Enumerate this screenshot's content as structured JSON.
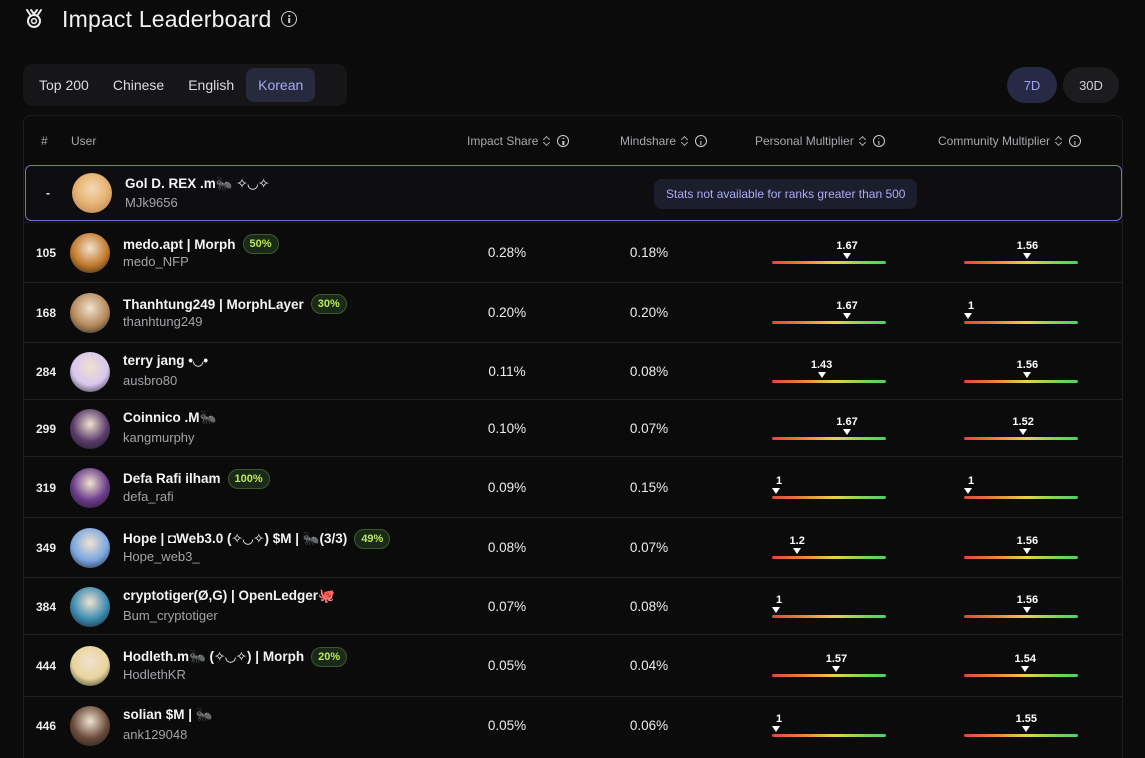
{
  "header": {
    "title": "Impact Leaderboard"
  },
  "tabs": [
    {
      "label": "Top 200",
      "active": false
    },
    {
      "label": "Chinese",
      "active": false
    },
    {
      "label": "English",
      "active": false
    },
    {
      "label": "Korean",
      "active": true
    }
  ],
  "periods": [
    {
      "label": "7D",
      "active": true
    },
    {
      "label": "30D",
      "active": false
    }
  ],
  "columns": {
    "rank": "#",
    "user": "User",
    "impact": "Impact Share",
    "mindshare": "Mindshare",
    "personal": "Personal Multiplier",
    "community": "Community Multiplier"
  },
  "multiplier_scale": {
    "min": 1,
    "max": 2
  },
  "current_user": {
    "rank": "-",
    "name": "Gol D. REX .m🐜 ✧◡✧",
    "handle": "MJk9656",
    "notice": "Stats not available for ranks greater than 500"
  },
  "rows": [
    {
      "rank": "105",
      "name": "medo.apt | Morph",
      "badge": "50%",
      "handle": "medo_NFP",
      "impact": "0.28%",
      "mindshare": "0.18%",
      "personal": 1.67,
      "personal_label": "1.67",
      "community": 1.56,
      "community_label": "1.56",
      "avatar_color": "#c27a2a"
    },
    {
      "rank": "168",
      "name": "Thanhtung249 | MorphLayer",
      "badge": "30%",
      "handle": "thanhtung249",
      "impact": "0.20%",
      "mindshare": "0.20%",
      "personal": 1.67,
      "personal_label": "1.67",
      "community": 1,
      "community_label": "1",
      "avatar_color": "#b58a5a"
    },
    {
      "rank": "284",
      "name": "terry jang •◡•",
      "badge": "",
      "handle": "ausbro80",
      "impact": "0.11%",
      "mindshare": "0.08%",
      "personal": 1.43,
      "personal_label": "1.43",
      "community": 1.56,
      "community_label": "1.56",
      "avatar_color": "#d8c6ee"
    },
    {
      "rank": "299",
      "name": "Coinnico .M🐜",
      "badge": "",
      "handle": "kangmurphy",
      "impact": "0.10%",
      "mindshare": "0.07%",
      "personal": 1.67,
      "personal_label": "1.67",
      "community": 1.52,
      "community_label": "1.52",
      "avatar_color": "#5a3a6a"
    },
    {
      "rank": "319",
      "name": "Defa Rafi ilham",
      "badge": "100%",
      "handle": "defa_rafi",
      "impact": "0.09%",
      "mindshare": "0.15%",
      "personal": 1,
      "personal_label": "1",
      "community": 1,
      "community_label": "1",
      "avatar_color": "#6a3a8a"
    },
    {
      "rank": "349",
      "name": "Hope | ◘Web3.0 (✧◡✧) $M | 🐜(3/3)",
      "badge": "49%",
      "handle": "Hope_web3_",
      "impact": "0.08%",
      "mindshare": "0.07%",
      "personal": 1.2,
      "personal_label": "1.2",
      "community": 1.56,
      "community_label": "1.56",
      "avatar_color": "#7aa6e0"
    },
    {
      "rank": "384",
      "name": "cryptotiger(Ø,G) | OpenLedger🐙",
      "badge": "",
      "handle": "Bum_cryptotiger",
      "impact": "0.07%",
      "mindshare": "0.08%",
      "personal": 1,
      "personal_label": "1",
      "community": 1.56,
      "community_label": "1.56",
      "avatar_color": "#3a8ab0"
    },
    {
      "rank": "444",
      "name": "Hodleth.m🐜 (✧◡✧) | Morph",
      "badge": "20%",
      "handle": "HodlethKR",
      "impact": "0.05%",
      "mindshare": "0.04%",
      "personal": 1.57,
      "personal_label": "1.57",
      "community": 1.54,
      "community_label": "1.54",
      "avatar_color": "#e8d49a"
    },
    {
      "rank": "446",
      "name": "solian $M | 🐜",
      "badge": "",
      "handle": "ank129048",
      "impact": "0.05%",
      "mindshare": "0.06%",
      "personal": 1,
      "personal_label": "1",
      "community": 1.55,
      "community_label": "1.55",
      "avatar_color": "#6a4a3a"
    }
  ]
}
